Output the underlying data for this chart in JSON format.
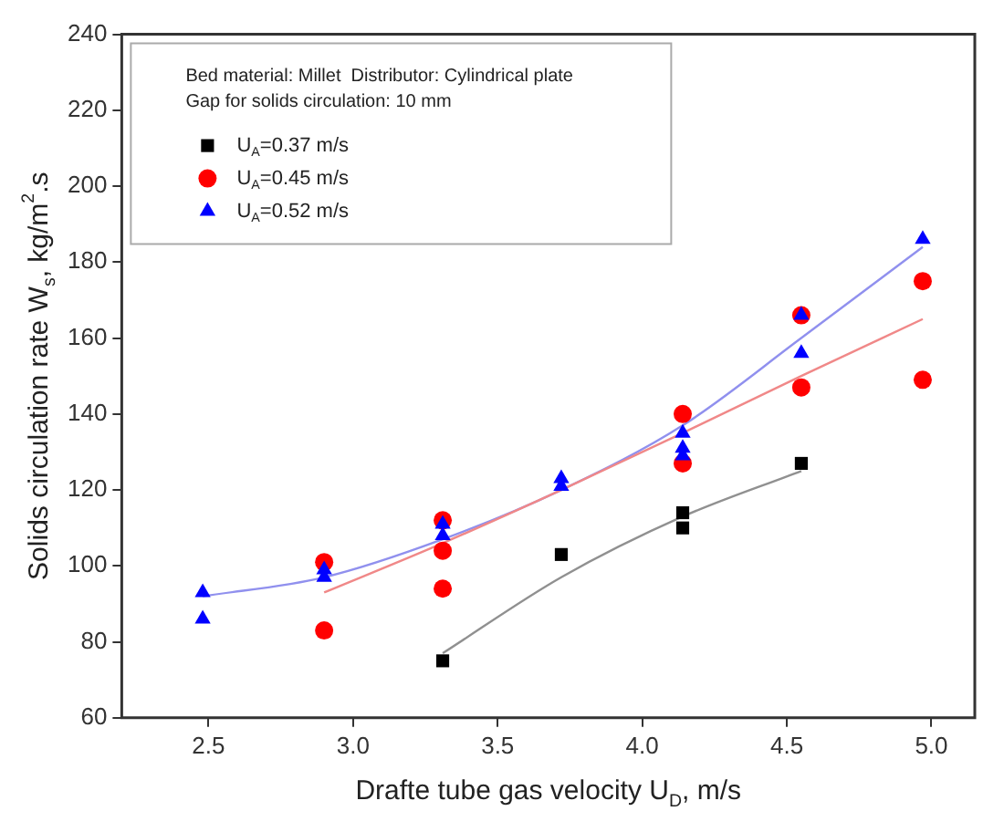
{
  "chart_data": {
    "type": "scatter",
    "xlabel": "Drafte tube gas velocity U$_{D}$, m/s",
    "ylabel": "Solids circulation rate W$_{s}$, kg/m$^{2}$.s",
    "annotations": [
      "Bed material: Millet  Distributor: Cylindrical plate",
      "Gap for solids circulation: 10 mm"
    ],
    "xlim": [
      2.2,
      5.15
    ],
    "xticks": [
      {
        "value": 2.5,
        "label": "2.5"
      },
      {
        "value": 3,
        "label": "3.0"
      },
      {
        "value": 3.5,
        "label": "3.5"
      },
      {
        "value": 4,
        "label": "4.0"
      },
      {
        "value": 4.5,
        "label": "4.5"
      },
      {
        "value": 5,
        "label": "5.0"
      }
    ],
    "ylim": [
      60,
      240
    ],
    "yticks": [
      60,
      80,
      100,
      120,
      140,
      160,
      180,
      200,
      220,
      240
    ],
    "grid": false,
    "legend": "top left",
    "series": [
      {
        "name": "U$_{A}$=0.37 m/s",
        "color": "#000000",
        "marker": "square",
        "x": [
          3.31,
          3.72,
          4.14,
          4.14,
          4.55
        ],
        "values": [
          75,
          103,
          114,
          110,
          127
        ]
      },
      {
        "name": "U$_{A}$=0.45 m/s",
        "color": "#ff0000",
        "marker": "circle",
        "x": [
          2.9,
          2.9,
          3.31,
          3.31,
          3.31,
          4.14,
          4.14,
          4.55,
          4.55,
          4.97,
          4.97
        ],
        "values": [
          101,
          83,
          112,
          104,
          94,
          140,
          127,
          166,
          147,
          175,
          149
        ]
      },
      {
        "name": "U$_{A}$=0.52 m/s",
        "color": "#0000ff",
        "marker": "triangle",
        "x": [
          2.48,
          2.48,
          2.9,
          2.9,
          3.31,
          3.31,
          3.72,
          3.72,
          4.14,
          4.14,
          4.14,
          4.55,
          4.55,
          4.97
        ],
        "values": [
          93,
          86,
          99,
          97,
          111,
          108,
          123,
          121,
          135,
          131,
          129,
          166,
          156,
          186
        ]
      },
      {
        "type": "line",
        "color": "#909090",
        "marker": "none",
        "x": [
          3.31,
          3.72,
          4.14,
          4.55
        ],
        "values": [
          77,
          97,
          113,
          125
        ]
      },
      {
        "type": "line",
        "color": "#f08888",
        "marker": "none",
        "x": [
          2.9,
          3.31,
          3.72,
          4.14,
          4.55,
          4.97
        ],
        "values": [
          93,
          106,
          120,
          135,
          150,
          165
        ]
      },
      {
        "type": "line",
        "color": "#9090ee",
        "marker": "none",
        "x": [
          2.48,
          2.9,
          3.31,
          3.72,
          4.14,
          4.55,
          4.97
        ],
        "values": [
          92,
          97,
          107,
          120,
          137,
          160,
          184
        ]
      }
    ]
  }
}
